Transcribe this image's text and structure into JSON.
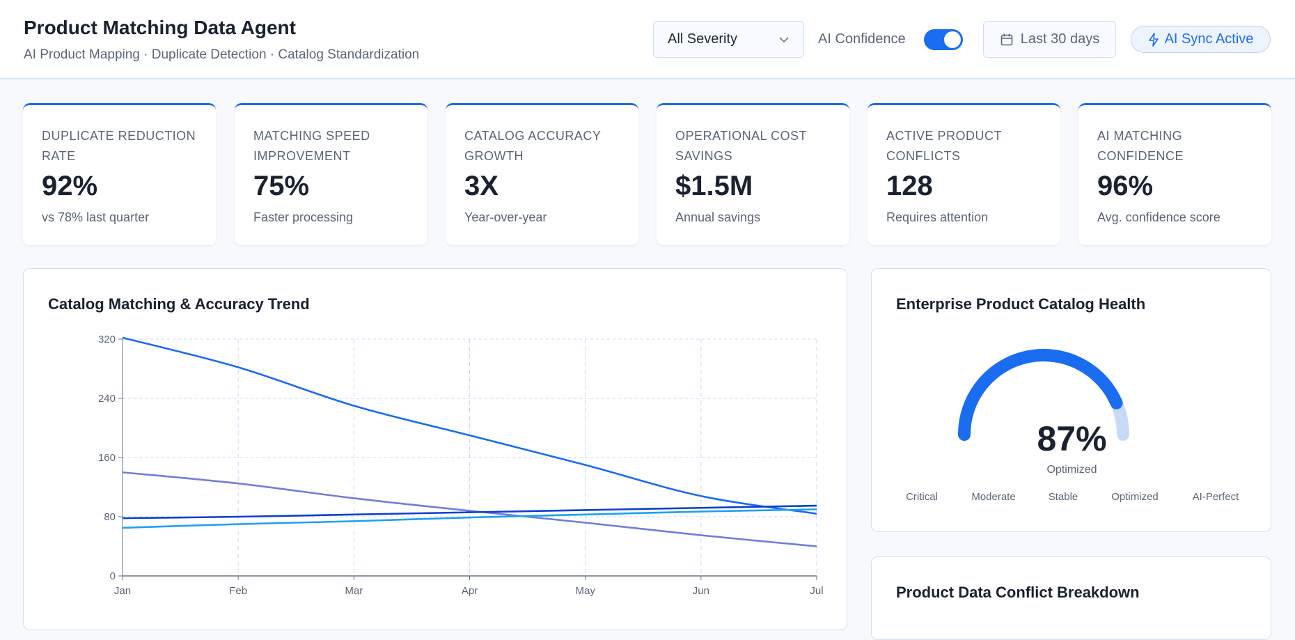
{
  "header": {
    "title": "Product Matching Data Agent",
    "subtitle": "AI Product Mapping · Duplicate Detection · Catalog Standardization",
    "severity": "All Severity",
    "confidence_label": "AI Confidence",
    "confidence_on": true,
    "date_range": "Last 30 days",
    "sync": "AI Sync Active"
  },
  "kpis": [
    {
      "label": "Duplicate Reduction Rate",
      "value": "92%",
      "sub": "vs 78% last quarter"
    },
    {
      "label": "Matching Speed Improvement",
      "value": "75%",
      "sub": "Faster processing"
    },
    {
      "label": "Catalog Accuracy Growth",
      "value": "3X",
      "sub": "Year-over-year"
    },
    {
      "label": "Operational Cost Savings",
      "value": "$1.5M",
      "sub": "Annual savings"
    },
    {
      "label": "Active Product Conflicts",
      "value": "128",
      "sub": "Requires attention"
    },
    {
      "label": "AI Matching Confidence",
      "value": "96%",
      "sub": "Avg. confidence score"
    }
  ],
  "trend": {
    "title": "Catalog Matching & Accuracy Trend"
  },
  "chart_data": {
    "type": "line",
    "categories": [
      "Jan",
      "Feb",
      "Mar",
      "Apr",
      "May",
      "Jun",
      "Jul"
    ],
    "ylim": [
      0,
      320
    ],
    "yticks": [
      0,
      80,
      160,
      240,
      320
    ],
    "grid": true,
    "series": [
      {
        "color": "#1a6cf0",
        "values": [
          322,
          282,
          230,
          190,
          150,
          108,
          84
        ]
      },
      {
        "color": "#6f7fd8",
        "values": [
          140,
          125,
          105,
          88,
          72,
          55,
          40
        ]
      },
      {
        "color": "#0d3fcf",
        "values": [
          78,
          80,
          83,
          86,
          89,
          92,
          95
        ]
      },
      {
        "color": "#1ea0ee",
        "values": [
          65,
          70,
          74,
          79,
          83,
          87,
          90
        ]
      }
    ]
  },
  "health": {
    "title": "Enterprise Product Catalog Health",
    "value": 87,
    "value_label": "87%",
    "status": "Optimized",
    "scale": [
      "Critical",
      "Moderate",
      "Stable",
      "Optimized",
      "AI-Perfect"
    ],
    "color": "#1a6cf0",
    "track": "#c7dbf9"
  },
  "conflicts": {
    "title": "Product Data Conflict Breakdown"
  }
}
